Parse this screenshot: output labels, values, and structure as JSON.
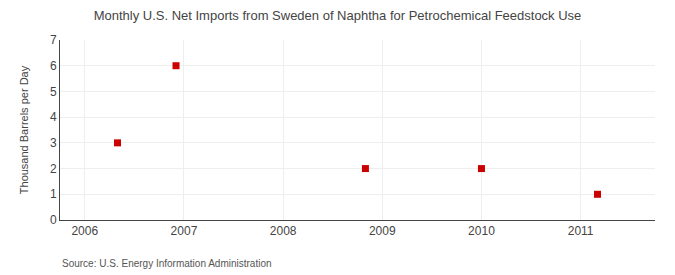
{
  "chart_data": {
    "type": "scatter",
    "title": "Monthly U.S. Net Imports from Sweden of Naphtha for Petrochemical Feedstock Use",
    "ylabel": "Thousand Barrels per Day",
    "annotations": [
      "Source: U.S. Energy Information Administration"
    ],
    "x": [
      2006.33,
      2006.92,
      2008.83,
      2010.0,
      2011.17
    ],
    "values": [
      3,
      6,
      2,
      2,
      1
    ],
    "color": "#cc0000",
    "marker": "square",
    "xlim": [
      2005.75,
      2011.75
    ],
    "ylim": [
      0,
      7
    ],
    "xticks": [
      2006,
      2007,
      2008,
      2009,
      2010,
      2011
    ],
    "yticks": [
      0,
      1,
      2,
      3,
      4,
      5,
      6,
      7
    ],
    "grid": true
  }
}
